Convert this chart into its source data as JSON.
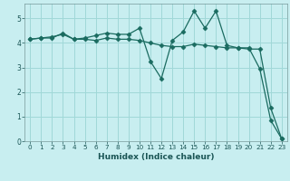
{
  "title": "",
  "xlabel": "Humidex (Indice chaleur)",
  "bg_color": "#c8eef0",
  "grid_color": "#a0d8d8",
  "line_color": "#1a6b60",
  "xlim": [
    -0.5,
    23.5
  ],
  "ylim": [
    0,
    5.6
  ],
  "yticks": [
    0,
    1,
    2,
    3,
    4,
    5
  ],
  "xticks": [
    0,
    1,
    2,
    3,
    4,
    5,
    6,
    7,
    8,
    9,
    10,
    11,
    12,
    13,
    14,
    15,
    16,
    17,
    18,
    19,
    20,
    21,
    22,
    23
  ],
  "line1_x": [
    0,
    1,
    2,
    3,
    4,
    5,
    6,
    7,
    8,
    9,
    10,
    11,
    12,
    13,
    14,
    15,
    16,
    17,
    18,
    19,
    20,
    21,
    22,
    23
  ],
  "line1_y": [
    4.15,
    4.2,
    4.25,
    4.35,
    4.15,
    4.2,
    4.3,
    4.4,
    4.35,
    4.35,
    4.6,
    3.25,
    2.55,
    4.1,
    4.45,
    5.3,
    4.6,
    5.3,
    3.9,
    3.8,
    3.8,
    2.95,
    0.85,
    0.1
  ],
  "line2_x": [
    0,
    1,
    2,
    3,
    4,
    5,
    6,
    7,
    8,
    9,
    10,
    11,
    12,
    13,
    14,
    15,
    16,
    17,
    18,
    19,
    20,
    21,
    22,
    23
  ],
  "line2_y": [
    4.15,
    4.2,
    4.2,
    4.4,
    4.15,
    4.15,
    4.1,
    4.2,
    4.15,
    4.15,
    4.1,
    4.0,
    3.9,
    3.85,
    3.85,
    3.95,
    3.9,
    3.85,
    3.8,
    3.8,
    3.75,
    3.75,
    1.35,
    0.1
  ],
  "xlabel_fontsize": 6.5,
  "xlabel_color": "#1a5555",
  "tick_fontsize": 5.2,
  "tick_color": "#1a5555"
}
